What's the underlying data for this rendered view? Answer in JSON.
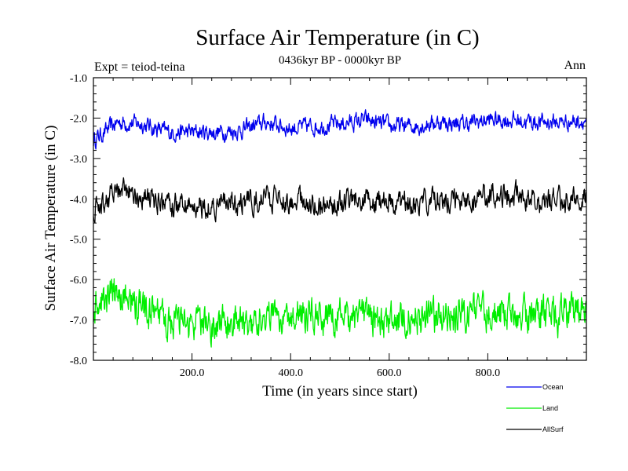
{
  "chart_data": {
    "type": "line",
    "title": "Surface Air Temperature (in C)",
    "subtitle": "0436kyr BP - 0000kyr BP",
    "left_label": "Expt = teiod-teina",
    "right_label": "Ann",
    "xlabel": "Time (in years since start)",
    "ylabel": "Surface Air Temperature (in C)",
    "xlim": [
      0,
      1000
    ],
    "ylim": [
      -8.0,
      -1.0
    ],
    "x_ticks": [
      200,
      400,
      600,
      800
    ],
    "x_tick_labels": [
      "200.0",
      "400.0",
      "600.0",
      "800.0"
    ],
    "y_ticks": [
      -1,
      -2,
      -3,
      -4,
      -5,
      -6,
      -7,
      -8
    ],
    "y_tick_labels": [
      "-1.0",
      "-2.0",
      "-3.0",
      "-4.0",
      "-5.0",
      "-6.0",
      "-7.0",
      "-8.0"
    ],
    "series": [
      {
        "name": "Ocean",
        "color": "#0000ee",
        "x": [
          0,
          50,
          100,
          150,
          200,
          250,
          300,
          350,
          400,
          450,
          500,
          550,
          600,
          650,
          700,
          750,
          800,
          850,
          900,
          950,
          1000
        ],
        "values": [
          -2.55,
          -2.1,
          -2.15,
          -2.35,
          -2.35,
          -2.35,
          -2.3,
          -2.1,
          -2.25,
          -2.2,
          -2.15,
          -2.05,
          -2.2,
          -2.2,
          -2.1,
          -2.15,
          -2.05,
          -2.05,
          -2.1,
          -2.1,
          -2.05
        ],
        "amplitude": 0.17
      },
      {
        "name": "Land",
        "color": "#00ee00",
        "x": [
          0,
          50,
          100,
          150,
          200,
          250,
          300,
          350,
          400,
          450,
          500,
          550,
          600,
          650,
          700,
          750,
          800,
          850,
          900,
          950,
          1000
        ],
        "values": [
          -6.8,
          -6.3,
          -6.75,
          -7.05,
          -7.15,
          -7.1,
          -7.05,
          -6.9,
          -6.85,
          -6.9,
          -6.95,
          -6.95,
          -7.0,
          -6.95,
          -6.9,
          -6.85,
          -6.8,
          -6.85,
          -6.95,
          -6.9,
          -6.8
        ],
        "amplitude": 0.36
      },
      {
        "name": "AllSurf",
        "color": "#000000",
        "x": [
          0,
          50,
          100,
          150,
          200,
          250,
          300,
          350,
          400,
          450,
          500,
          550,
          600,
          650,
          700,
          750,
          800,
          850,
          900,
          950,
          1000
        ],
        "values": [
          -4.3,
          -3.8,
          -3.95,
          -4.15,
          -4.2,
          -4.15,
          -4.1,
          -4.0,
          -4.05,
          -4.15,
          -4.1,
          -4.05,
          -4.1,
          -4.1,
          -4.0,
          -4.0,
          -3.85,
          -3.9,
          -4.0,
          -4.05,
          -3.95
        ],
        "amplitude": 0.24
      }
    ],
    "legend": {
      "placement": "bottom-right",
      "entries": [
        "Ocean",
        "Land",
        "AllSurf"
      ]
    }
  }
}
